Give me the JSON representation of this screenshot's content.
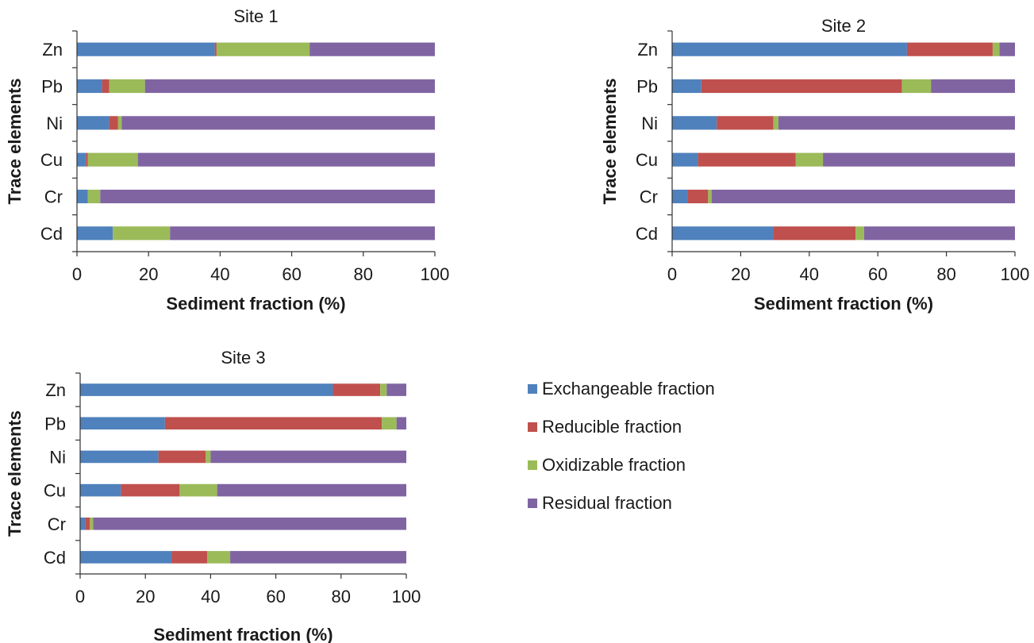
{
  "legend": [
    {
      "label": "Exchangeable fraction",
      "color": "#4f81bd"
    },
    {
      "label": "Reducible fraction",
      "color": "#c0504d"
    },
    {
      "label": "Oxidizable fraction",
      "color": "#9bbb59"
    },
    {
      "label": "Residual fraction",
      "color": "#8064a2"
    }
  ],
  "chart_data": [
    {
      "type": "bar",
      "orientation": "horizontal",
      "stacked": true,
      "title": "Site 1",
      "xlabel": "Sediment fraction (%)",
      "ylabel": "Trace elements",
      "xlim": [
        0,
        100
      ],
      "xticks": [
        0,
        20,
        40,
        60,
        80,
        100
      ],
      "grid": false,
      "categories": [
        "Zn",
        "Pb",
        "Ni",
        "Cu",
        "Cr",
        "Cd"
      ],
      "series": [
        {
          "name": "Exchangeable fraction",
          "color": "#4f81bd",
          "values": [
            38.5,
            7,
            9,
            2.5,
            3,
            10
          ]
        },
        {
          "name": "Reducible fraction",
          "color": "#c0504d",
          "values": [
            0.5,
            2,
            2.5,
            0.5,
            0,
            0
          ]
        },
        {
          "name": "Oxidizable fraction",
          "color": "#9bbb59",
          "values": [
            26,
            10,
            1,
            14,
            3.5,
            16
          ]
        },
        {
          "name": "Residual fraction",
          "color": "#8064a2",
          "values": [
            35,
            81,
            87.5,
            83,
            93.5,
            74
          ]
        }
      ]
    },
    {
      "type": "bar",
      "orientation": "horizontal",
      "stacked": true,
      "title": "Site 2",
      "xlabel": "Sediment fraction (%)",
      "ylabel": "Trace elements",
      "xlim": [
        0,
        100
      ],
      "xticks": [
        0,
        20,
        40,
        60,
        80,
        100
      ],
      "grid": false,
      "categories": [
        "Zn",
        "Pb",
        "Ni",
        "Cu",
        "Cr",
        "Cd"
      ],
      "series": [
        {
          "name": "Exchangeable fraction",
          "color": "#4f81bd",
          "values": [
            68.5,
            8.5,
            13,
            7.5,
            4.5,
            29.5
          ]
        },
        {
          "name": "Reducible fraction",
          "color": "#c0504d",
          "values": [
            25,
            58.5,
            16.5,
            28.5,
            6,
            24
          ]
        },
        {
          "name": "Oxidizable fraction",
          "color": "#9bbb59",
          "values": [
            2,
            8.5,
            1.5,
            8,
            1,
            2.5
          ]
        },
        {
          "name": "Residual fraction",
          "color": "#8064a2",
          "values": [
            4.5,
            24.5,
            69,
            56,
            88.5,
            44
          ]
        }
      ]
    },
    {
      "type": "bar",
      "orientation": "horizontal",
      "stacked": true,
      "title": "Site 3",
      "xlabel": "Sediment fraction (%)",
      "ylabel": "Trace elements",
      "xlim": [
        0,
        100
      ],
      "xticks": [
        0,
        20,
        40,
        60,
        80,
        100
      ],
      "grid": false,
      "categories": [
        "Zn",
        "Pb",
        "Ni",
        "Cu",
        "Cr",
        "Cd"
      ],
      "series": [
        {
          "name": "Exchangeable fraction",
          "color": "#4f81bd",
          "values": [
            77.5,
            26,
            24,
            12.5,
            1.5,
            28
          ]
        },
        {
          "name": "Reducible fraction",
          "color": "#c0504d",
          "values": [
            14.5,
            66.5,
            14.5,
            18,
            1.5,
            11
          ]
        },
        {
          "name": "Oxidizable fraction",
          "color": "#9bbb59",
          "values": [
            2,
            4.5,
            1.5,
            11.5,
            1,
            7
          ]
        },
        {
          "name": "Residual fraction",
          "color": "#8064a2",
          "values": [
            6,
            3,
            60,
            58,
            96,
            54
          ]
        }
      ]
    }
  ]
}
